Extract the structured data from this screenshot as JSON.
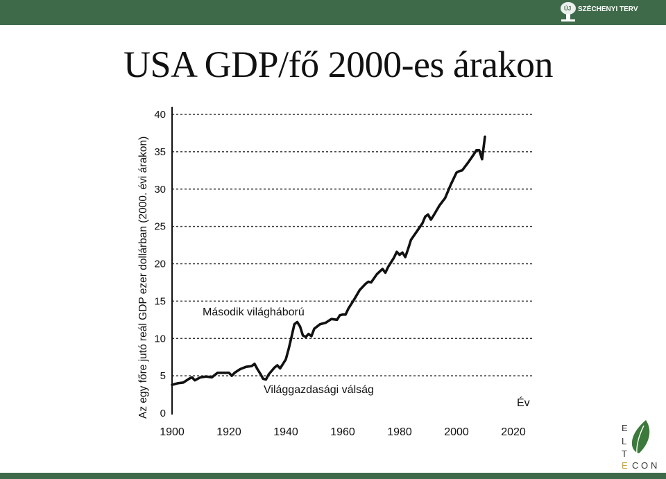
{
  "header": {
    "brand": "SZÉCHENYI TERV",
    "emblem": "ÚJ"
  },
  "slide": {
    "title": "USA GDP/fő 2000-es árakon"
  },
  "footer": {
    "logo_letters": [
      "E",
      "L",
      "T",
      "E",
      "C",
      "O",
      "N"
    ]
  },
  "colors": {
    "top_bar": "#3f6a4a",
    "bottom_bar": "#3f6a4a",
    "line": "#111111",
    "logo_leaf": "#3b7a3a"
  },
  "chart_data": {
    "type": "line",
    "title": "",
    "ylabel": "Az egy főre jutó reál GDP ezer dollárban (2000. évi árakon)",
    "xlabel": "Év",
    "xlim": [
      1900,
      2020
    ],
    "ylim": [
      0,
      40
    ],
    "x_ticks": [
      1900,
      1920,
      1940,
      1960,
      1980,
      2000,
      2020
    ],
    "y_ticks": [
      0,
      5,
      10,
      15,
      20,
      25,
      30,
      35,
      40
    ],
    "grid": "horizontal-dotted",
    "annotations": [
      {
        "text": "Második világháború",
        "x": 1944,
        "y": 12.2
      },
      {
        "text": "Világgazdasági válság",
        "x": 1933,
        "y": 4.6
      }
    ],
    "series": [
      {
        "x": [
          1900,
          1902,
          1904,
          1906,
          1907,
          1908,
          1910,
          1912,
          1914,
          1916,
          1918,
          1920,
          1921,
          1922,
          1924,
          1926,
          1928,
          1929,
          1930,
          1931,
          1932,
          1933,
          1934,
          1936,
          1937,
          1938,
          1939,
          1940,
          1941,
          1942,
          1943,
          1944,
          1945,
          1946,
          1947,
          1948,
          1949,
          1950,
          1952,
          1954,
          1956,
          1958,
          1959,
          1960,
          1961,
          1962,
          1964,
          1966,
          1968,
          1969,
          1970,
          1972,
          1974,
          1975,
          1976,
          1978,
          1979,
          1980,
          1981,
          1982,
          1983,
          1984,
          1986,
          1988,
          1989,
          1990,
          1991,
          1992,
          1994,
          1996,
          1998,
          2000,
          2001,
          2002,
          2004,
          2006,
          2007,
          2008,
          2009,
          2010
        ],
        "values": [
          3.8,
          4.0,
          4.1,
          4.6,
          4.8,
          4.4,
          4.8,
          4.9,
          4.8,
          5.4,
          5.4,
          5.4,
          5.0,
          5.4,
          5.9,
          6.2,
          6.3,
          6.6,
          5.9,
          5.3,
          4.6,
          4.5,
          5.2,
          6.1,
          6.4,
          6.0,
          6.6,
          7.2,
          8.6,
          10.2,
          11.9,
          12.2,
          11.6,
          10.4,
          10.2,
          10.6,
          10.3,
          11.3,
          11.9,
          12.1,
          12.6,
          12.5,
          13.1,
          13.2,
          13.2,
          14.0,
          15.2,
          16.5,
          17.3,
          17.6,
          17.5,
          18.6,
          19.3,
          18.8,
          19.6,
          20.8,
          21.6,
          21.2,
          21.5,
          20.9,
          22.0,
          23.2,
          24.3,
          25.4,
          26.3,
          26.6,
          25.9,
          26.5,
          27.8,
          28.8,
          30.6,
          32.2,
          32.4,
          32.5,
          33.5,
          34.6,
          35.2,
          35.2,
          34.0,
          37.0
        ]
      }
    ]
  }
}
